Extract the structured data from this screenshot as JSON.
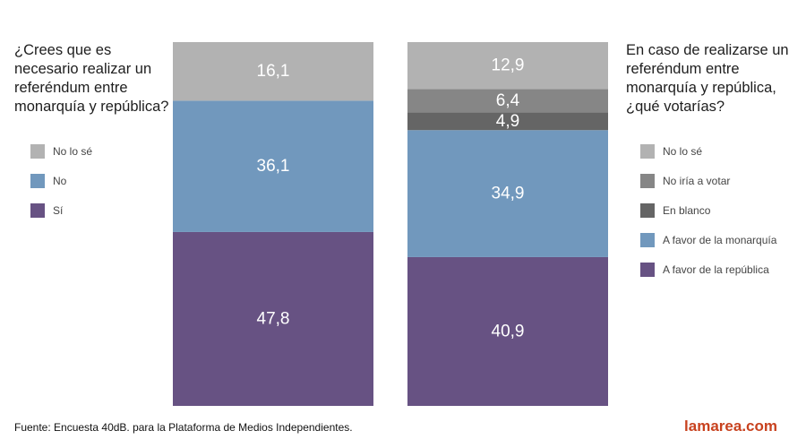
{
  "chart_data": [
    {
      "type": "bar",
      "stacked": true,
      "title": "¿Crees que es necesario realizar un referéndum entre monarquía y república?",
      "categories": [
        "Sí",
        "No",
        "No lo sé"
      ],
      "values": [
        47.8,
        36.1,
        16.1
      ],
      "colors": [
        "#675283",
        "#7198bd",
        "#b2b2b2"
      ],
      "value_labels": [
        "47,8",
        "36,1",
        "16,1"
      ],
      "legend": [
        "No lo sé",
        "No",
        "Sí"
      ],
      "legend_colors": [
        "#b2b2b2",
        "#7198bd",
        "#675283"
      ],
      "ylim": [
        0,
        100
      ]
    },
    {
      "type": "bar",
      "stacked": true,
      "title": "En caso de realizarse un referéndum entre monarquía y república, ¿qué votarías?",
      "categories": [
        "A favor de la república",
        "A favor de la monarquía",
        "En blanco",
        "No iría a votar",
        "No lo sé"
      ],
      "values": [
        40.9,
        34.9,
        4.9,
        6.4,
        12.9
      ],
      "colors": [
        "#675283",
        "#7198bd",
        "#656565",
        "#868686",
        "#b2b2b2"
      ],
      "value_labels": [
        "40,9",
        "34,9",
        "4,9",
        "6,4",
        "12,9"
      ],
      "legend": [
        "No lo sé",
        "No iría a votar",
        "En blanco",
        "A favor de la monarquía",
        "A favor de la república"
      ],
      "legend_colors": [
        "#b2b2b2",
        "#868686",
        "#656565",
        "#7198bd",
        "#675283"
      ],
      "ylim": [
        0,
        100
      ]
    }
  ],
  "footer": {
    "source": "Fuente: Encuesta 40dB. para la Plataforma de Medios Independientes.",
    "brand": "lamarea.com"
  }
}
